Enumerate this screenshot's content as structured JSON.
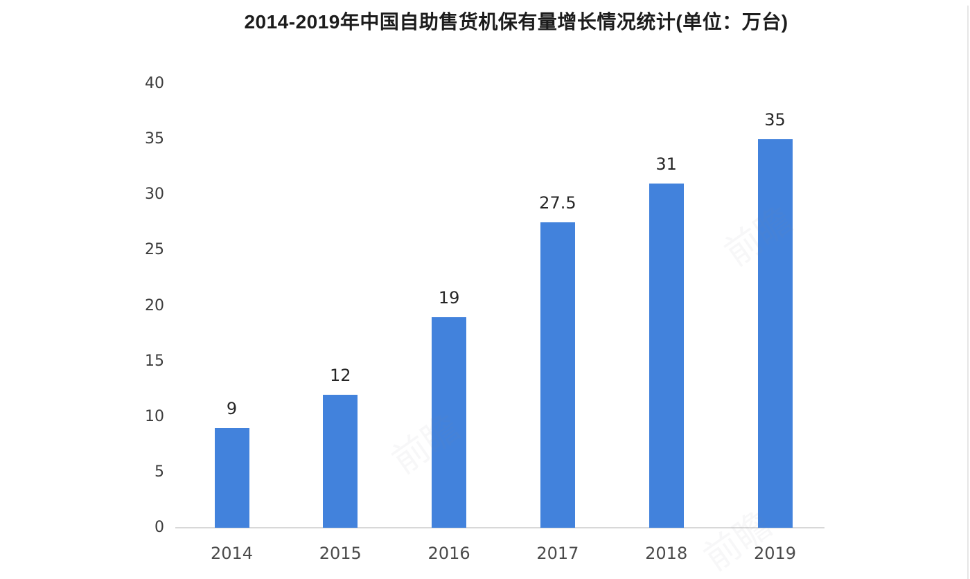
{
  "chart_data": {
    "type": "bar",
    "title": "2014-2019年中国自助售货机保有量增长情况统计(单位：万台)",
    "categories": [
      "2014",
      "2015",
      "2016",
      "2017",
      "2018",
      "2019"
    ],
    "values": [
      9,
      12,
      19,
      27.5,
      31,
      35
    ],
    "value_labels": [
      "9",
      "12",
      "19",
      "27.5",
      "31",
      "35"
    ],
    "xlabel": "",
    "ylabel": "",
    "ylim": [
      0,
      40
    ],
    "yticks": [
      0,
      5,
      10,
      15,
      20,
      25,
      30,
      35,
      40
    ],
    "grid": false,
    "legend": "none",
    "bar_color": "#4282DC",
    "axis_line_color": "#d8d8d8",
    "title_color": "#1c1c1c",
    "tick_label_color": "#3b3b3b",
    "value_label_color": "#262626",
    "category_label_color": "#4a4a4a"
  },
  "watermark": {
    "text": "前瞻"
  }
}
